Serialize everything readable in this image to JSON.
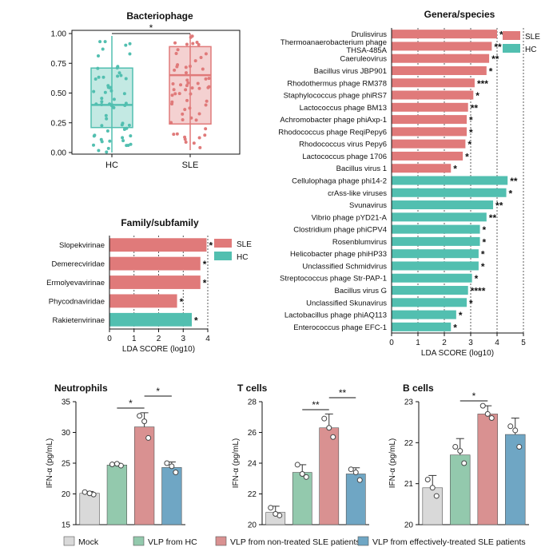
{
  "colors": {
    "sle": "#e07a7a",
    "hc": "#52bfb0",
    "mock": "#d9d9d9",
    "vlp_hc": "#93c9ad",
    "vlp_nt": "#d99191",
    "vlp_et": "#6fa6c4"
  },
  "chart_data": [
    {
      "type": "box",
      "title": "Bacteriophage",
      "categories": [
        "HC",
        "SLE"
      ],
      "ylim": [
        0,
        1
      ],
      "yticks": [
        "0.00",
        "0.25",
        "0.50",
        "0.75",
        "1.00"
      ],
      "boxes": [
        {
          "name": "HC",
          "min": 0.0,
          "q1": 0.21,
          "median": 0.4,
          "q3": 0.71,
          "max": 0.98
        },
        {
          "name": "SLE",
          "min": 0.02,
          "q1": 0.24,
          "median": 0.65,
          "q3": 0.89,
          "max": 1.0
        }
      ],
      "significance": "*"
    },
    {
      "type": "bar",
      "orientation": "horizontal",
      "title": "Family/subfamily",
      "xlabel": "LDA SCORE (log10)",
      "xlim": [
        0,
        4
      ],
      "xticks": [
        "0",
        "1",
        "2",
        "3",
        "4"
      ],
      "legend": [
        "SLE",
        "HC"
      ],
      "categories": [
        "Slopekvirinae",
        "Demerecviridae",
        "Ermolyevavirinae",
        "Phycodnaviridae",
        "Rakietenvirinae"
      ],
      "values": [
        3.95,
        3.7,
        3.7,
        2.75,
        3.35
      ],
      "groups": [
        "SLE",
        "SLE",
        "SLE",
        "SLE",
        "HC"
      ],
      "stars": [
        "*",
        "*",
        "*",
        "*",
        "*"
      ]
    },
    {
      "type": "bar",
      "orientation": "horizontal",
      "title": "Genera/species",
      "xlabel": "LDA SCORE (log10)",
      "xlim": [
        0,
        5
      ],
      "xticks": [
        "0",
        "1",
        "2",
        "3",
        "4",
        "5"
      ],
      "legend": [
        "SLE",
        "HC"
      ],
      "categories": [
        "Drulisvirus",
        "Thermoanaerobacterium phage THSA-485A",
        "Caeruleovirus",
        "Bacillus virus JBP901",
        "Rhodothermus phage RM378",
        "Staphylococcus phage phiRS7",
        "Lactococcus phage BM13",
        "Achromobacter phage phiAxp-1",
        "Rhodococcus phage ReqiPepy6",
        "Rhodococcus virus Pepy6",
        "Lactococcus phage 1706",
        "Bacillus virus 1",
        "Cellulophaga phage phi14-2",
        "crAss-like viruses",
        "Svunavirus",
        "Vibrio phage pYD21-A",
        "Clostridium phage phiCPV4",
        "Rosenblumvirus",
        "Helicobacter phage phiHP33",
        "Unclassified Schmidvirus",
        "Streptococcus phage Str-PAP-1",
        "Bacillus virus G",
        "Unclassified Skunavirus",
        "Lactobacillus phage phiAQ113",
        "Enterococcus phage EFC-1"
      ],
      "values": [
        4.0,
        3.8,
        3.7,
        3.6,
        3.15,
        3.1,
        2.9,
        2.85,
        2.85,
        2.8,
        2.7,
        2.25,
        4.4,
        4.35,
        3.85,
        3.6,
        3.35,
        3.35,
        3.3,
        3.3,
        3.05,
        2.9,
        2.85,
        2.45,
        2.25
      ],
      "groups": [
        "SLE",
        "SLE",
        "SLE",
        "SLE",
        "SLE",
        "SLE",
        "SLE",
        "SLE",
        "SLE",
        "SLE",
        "SLE",
        "SLE",
        "HC",
        "HC",
        "HC",
        "HC",
        "HC",
        "HC",
        "HC",
        "HC",
        "HC",
        "HC",
        "HC",
        "HC",
        "HC"
      ],
      "stars": [
        "*",
        "**",
        "**",
        "*",
        "***",
        "*",
        "**",
        "*",
        "*",
        "*",
        "*",
        "*",
        "**",
        "*",
        "**",
        "**",
        "*",
        "*",
        "*",
        "*",
        "*",
        "****",
        "*",
        "*",
        "*"
      ]
    },
    {
      "type": "bar",
      "title": "Neutrophils",
      "ylabel": "IFN-α (pg/mL)",
      "ylim": [
        15,
        35
      ],
      "yticks": [
        "15",
        "20",
        "25",
        "30",
        "35"
      ],
      "categories": [
        "Mock",
        "VLP from HC",
        "VLP from non-treated SLE patients",
        "VLP from effectively-treated SLE patients"
      ],
      "values": [
        20.1,
        24.7,
        30.9,
        24.3
      ],
      "errors": [
        0.3,
        0.3,
        2.3,
        0.9
      ],
      "points": [
        [
          20.3,
          19.9,
          20.1
        ],
        [
          24.8,
          24.6,
          24.9
        ],
        [
          32.7,
          29.1,
          31.8
        ],
        [
          25.0,
          23.5,
          24.5
        ]
      ],
      "brackets": [
        {
          "from": 1,
          "to": 2,
          "label": "*"
        },
        {
          "from": 2,
          "to": 3,
          "label": "*"
        }
      ]
    },
    {
      "type": "bar",
      "title": "T cells",
      "ylabel": "IFN-α (pg/mL)",
      "ylim": [
        20,
        28
      ],
      "yticks": [
        "20",
        "22",
        "24",
        "26",
        "28"
      ],
      "categories": [
        "Mock",
        "VLP from HC",
        "VLP from non-treated SLE patients",
        "VLP from effectively-treated SLE patients"
      ],
      "values": [
        20.8,
        23.4,
        26.3,
        23.3
      ],
      "errors": [
        0.4,
        0.5,
        0.9,
        0.4
      ],
      "points": [
        [
          21.1,
          20.6,
          20.7
        ],
        [
          23.9,
          23.1,
          23.3
        ],
        [
          26.9,
          25.7,
          26.3
        ],
        [
          23.6,
          22.9,
          23.4
        ]
      ],
      "brackets": [
        {
          "from": 1,
          "to": 2,
          "label": "**"
        },
        {
          "from": 2,
          "to": 3,
          "label": "**"
        }
      ]
    },
    {
      "type": "bar",
      "title": "B cells",
      "ylabel": "IFN-α (pg/mL)",
      "ylim": [
        20,
        23
      ],
      "yticks": [
        "20",
        "21",
        "22",
        "23"
      ],
      "categories": [
        "Mock",
        "VLP from HC",
        "VLP from non-treated SLE patients",
        "VLP from effectively-treated SLE patients"
      ],
      "values": [
        20.9,
        21.7,
        22.7,
        22.2
      ],
      "errors": [
        0.3,
        0.4,
        0.2,
        0.4
      ],
      "points": [
        [
          21.1,
          20.7,
          20.9
        ],
        [
          21.9,
          21.5,
          21.8
        ],
        [
          22.9,
          22.6,
          22.7
        ],
        [
          22.4,
          21.9,
          22.3
        ]
      ],
      "brackets": [
        {
          "from": 1,
          "to": 2,
          "label": "*"
        }
      ]
    }
  ],
  "legend_bottom": [
    "Mock",
    "VLP from HC",
    "VLP from non-treated SLE patients",
    "VLP from effectively-treated SLE patients"
  ]
}
